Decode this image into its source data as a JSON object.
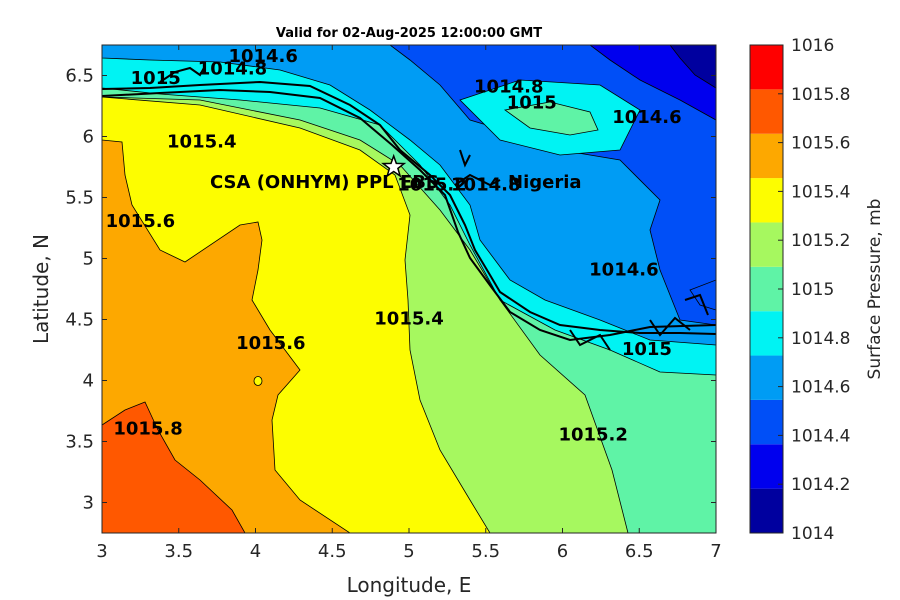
{
  "title": "Valid for 02-Aug-2025 12:00:00 GMT",
  "axes": {
    "xlabel": "Longitude, E",
    "ylabel": "Latitude, N",
    "xlim": [
      3,
      7
    ],
    "ylim": [
      2.75,
      6.75
    ],
    "xticks": [
      "3",
      "3.5",
      "4",
      "4.5",
      "5",
      "5.5",
      "6",
      "6.5",
      "7"
    ],
    "yticks": [
      "3",
      "3.5",
      "4",
      "4.5",
      "5",
      "5.5",
      "6",
      "6.5"
    ]
  },
  "colorbar": {
    "label": "Surface Pressure, mb",
    "ticks": [
      "1014",
      "1014.2",
      "1014.4",
      "1014.6",
      "1014.8",
      "1015",
      "1015.2",
      "1015.4",
      "1015.6",
      "1015.8",
      "1016"
    ],
    "colors": [
      "#00009f",
      "#0000ee",
      "#004ff7",
      "#009cf4",
      "#00f3f3",
      "#5ff3a6",
      "#a6f85f",
      "#fdfd00",
      "#fda800",
      "#ff5800",
      "#ff0000"
    ]
  },
  "station": {
    "label": "CSA (ONHYM) PPL EBS",
    "lon": 4.9,
    "lat": 5.75
  },
  "country_label": "Nigeria",
  "chart_data": {
    "type": "contour",
    "variable": "Surface Pressure, mb",
    "contour_labels": [
      {
        "text": "1014.6",
        "lon": 4.05,
        "lat": 6.65
      },
      {
        "text": "1014.8",
        "lon": 3.85,
        "lat": 6.55
      },
      {
        "text": "1015",
        "lon": 3.35,
        "lat": 6.47
      },
      {
        "text": "1014.8",
        "lon": 5.65,
        "lat": 6.4
      },
      {
        "text": "1015",
        "lon": 5.8,
        "lat": 6.27
      },
      {
        "text": "1014.6",
        "lon": 6.55,
        "lat": 6.15
      },
      {
        "text": "1015.4",
        "lon": 3.65,
        "lat": 5.95
      },
      {
        "text": "1015.2",
        "lon": 5.15,
        "lat": 5.6
      },
      {
        "text": "1014.8",
        "lon": 5.5,
        "lat": 5.6
      },
      {
        "text": "1015.6",
        "lon": 3.25,
        "lat": 5.3
      },
      {
        "text": "1014.6",
        "lon": 6.4,
        "lat": 4.9
      },
      {
        "text": "1015.4",
        "lon": 5.0,
        "lat": 4.5
      },
      {
        "text": "1015.6",
        "lon": 4.1,
        "lat": 4.3
      },
      {
        "text": "1015",
        "lon": 6.55,
        "lat": 4.25
      },
      {
        "text": "1015.8",
        "lon": 3.3,
        "lat": 3.6
      },
      {
        "text": "1015.2",
        "lon": 6.2,
        "lat": 3.55
      }
    ]
  }
}
